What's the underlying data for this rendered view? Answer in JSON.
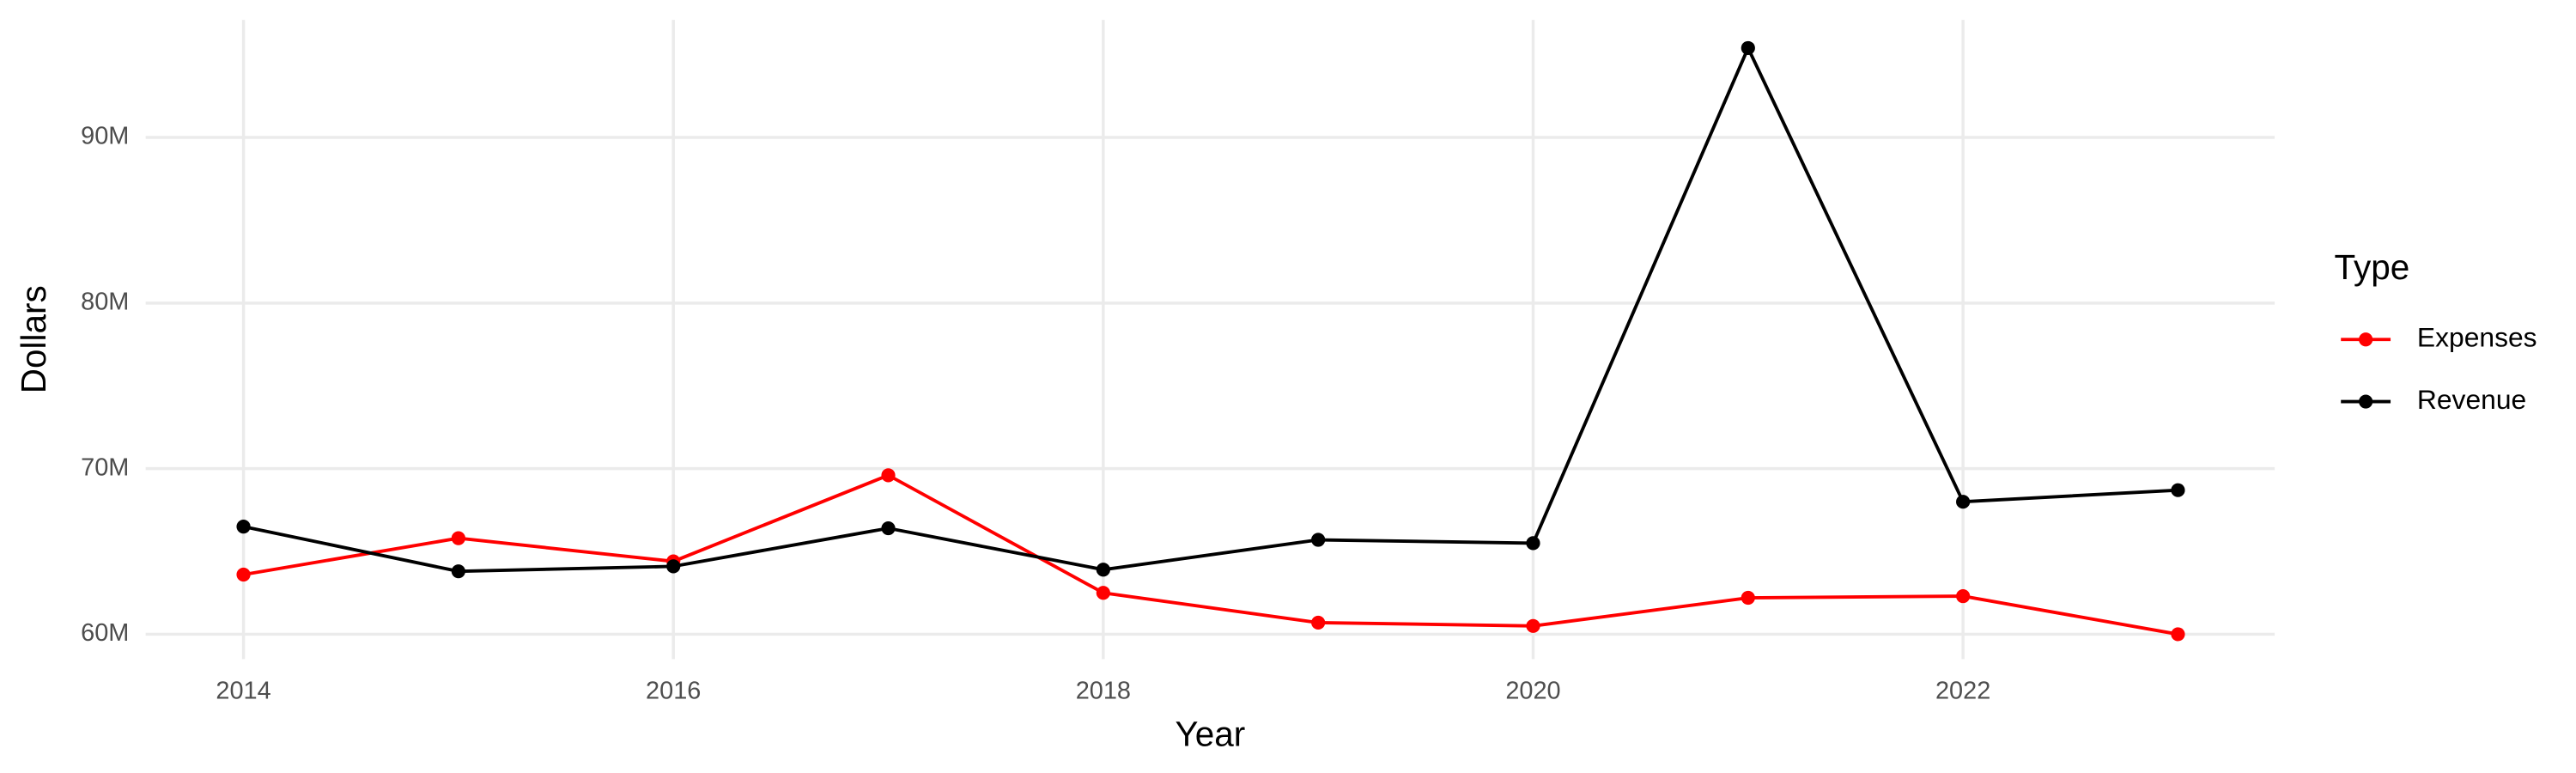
{
  "chart_data": {
    "type": "line",
    "x_label": "Year",
    "y_label": "Dollars",
    "legend_title": "Type",
    "x": [
      2014,
      2015,
      2016,
      2017,
      2018,
      2019,
      2020,
      2021,
      2022,
      2023
    ],
    "series": [
      {
        "name": "Expenses",
        "color": "#ff0000",
        "values": [
          63600000,
          65800000,
          64400000,
          69600000,
          62500000,
          60700000,
          60500000,
          62200000,
          62300000,
          60000000
        ]
      },
      {
        "name": "Revenue",
        "color": "#000000",
        "values": [
          66500000,
          63800000,
          64100000,
          66400000,
          63900000,
          65700000,
          65500000,
          95400000,
          68000000,
          68700000
        ]
      }
    ],
    "xlim": [
      2013.545,
      2023.45
    ],
    "xticks": [
      2014,
      2016,
      2018,
      2020,
      2022
    ],
    "ylim": [
      58500000,
      97100000
    ],
    "yticks": [
      {
        "value": 60000000,
        "label": "60M"
      },
      {
        "value": 70000000,
        "label": "70M"
      },
      {
        "value": 80000000,
        "label": "80M"
      },
      {
        "value": 90000000,
        "label": "90M"
      }
    ],
    "grid": true,
    "legend": "right"
  }
}
